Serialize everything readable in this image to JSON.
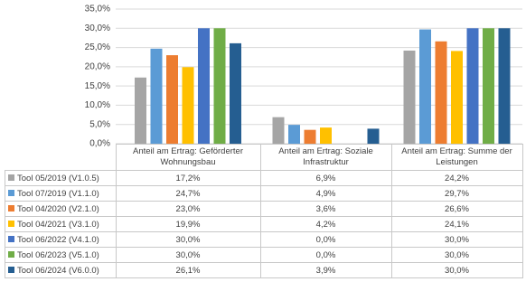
{
  "chart_data": {
    "type": "bar",
    "categories": [
      "Anteil am Ertrag: Geförderter Wohnungsbau",
      "Anteil am Ertrag: Soziale Infrastruktur",
      "Anteil am Ertrag: Summe der Leistungen"
    ],
    "ylim": [
      0,
      35
    ],
    "yticks": [
      {
        "value": 0,
        "label": "0,0%"
      },
      {
        "value": 5,
        "label": "5,0%"
      },
      {
        "value": 10,
        "label": "10,0%"
      },
      {
        "value": 15,
        "label": "15,0%"
      },
      {
        "value": 20,
        "label": "20,0%"
      },
      {
        "value": 25,
        "label": "25,0%"
      },
      {
        "value": 30,
        "label": "30,0%"
      },
      {
        "value": 35,
        "label": "35,0%"
      }
    ],
    "grid": true,
    "series": [
      {
        "name": "Tool 05/2019 (V1.0.5)",
        "color": "#a5a5a5",
        "values": [
          17.2,
          6.9,
          24.2
        ],
        "value_labels": [
          "17,2%",
          "6,9%",
          "24,2%"
        ]
      },
      {
        "name": "Tool 07/2019 (V1.1.0)",
        "color": "#5b9bd5",
        "values": [
          24.7,
          4.9,
          29.7
        ],
        "value_labels": [
          "24,7%",
          "4,9%",
          "29,7%"
        ]
      },
      {
        "name": "Tool 04/2020 (V2.1.0)",
        "color": "#ed7d31",
        "values": [
          23.0,
          3.6,
          26.6
        ],
        "value_labels": [
          "23,0%",
          "3,6%",
          "26,6%"
        ]
      },
      {
        "name": "Tool 04/2021 (V3.1.0)",
        "color": "#ffc000",
        "values": [
          19.9,
          4.2,
          24.1
        ],
        "value_labels": [
          "19,9%",
          "4,2%",
          "24,1%"
        ]
      },
      {
        "name": "Tool 06/2022 (V4.1.0)",
        "color": "#4472c4",
        "values": [
          30.0,
          0.0,
          30.0
        ],
        "value_labels": [
          "30,0%",
          "0,0%",
          "30,0%"
        ]
      },
      {
        "name": "Tool 06/2023 (V5.1.0)",
        "color": "#70ad47",
        "values": [
          30.0,
          0.0,
          30.0
        ],
        "value_labels": [
          "30,0%",
          "0,0%",
          "30,0%"
        ]
      },
      {
        "name": "Tool 06/2024 (V6.0.0)",
        "color": "#255e91",
        "values": [
          26.1,
          3.9,
          30.0
        ],
        "value_labels": [
          "26,1%",
          "3,9%",
          "30,0%"
        ]
      }
    ]
  }
}
